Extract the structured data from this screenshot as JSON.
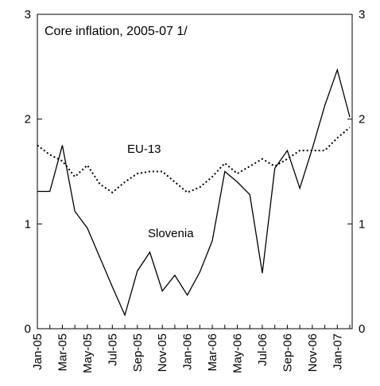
{
  "chart_data": {
    "type": "line",
    "title": "Core inflation, 2005-07 1/",
    "categories": [
      "Jan-05",
      null,
      "Mar-05",
      null,
      "May-05",
      null,
      "Jul-05",
      null,
      "Sep-05",
      null,
      "Nov-05",
      null,
      "Jan-06",
      null,
      "Mar-06",
      null,
      "May-06",
      null,
      "Jul-06",
      null,
      "Sep-06",
      null,
      "Nov-06",
      null,
      "Jan-07",
      null
    ],
    "series": [
      {
        "name": "Slovenia",
        "color": "#000000",
        "style": "solid",
        "values": [
          1.31,
          1.31,
          1.75,
          1.12,
          0.96,
          0.68,
          0.4,
          0.13,
          0.55,
          0.73,
          0.36,
          0.51,
          0.32,
          0.54,
          0.84,
          1.5,
          1.4,
          1.28,
          0.53,
          1.53,
          1.7,
          1.34,
          1.72,
          2.13,
          2.47,
          2.02
        ]
      },
      {
        "name": "EU-13",
        "color": "#000000",
        "style": "dotted",
        "values": [
          1.75,
          1.66,
          1.6,
          1.45,
          1.56,
          1.38,
          1.3,
          1.4,
          1.48,
          1.5,
          1.5,
          1.4,
          1.3,
          1.35,
          1.45,
          1.58,
          1.48,
          1.55,
          1.62,
          1.55,
          1.62,
          1.7,
          1.7,
          1.7,
          1.82,
          1.92
        ]
      }
    ],
    "ylim": [
      0,
      3
    ],
    "yticks": [
      0,
      1,
      2,
      3
    ],
    "y2lim": [
      0,
      3
    ],
    "y2ticks": [
      0,
      1,
      2,
      3
    ]
  }
}
